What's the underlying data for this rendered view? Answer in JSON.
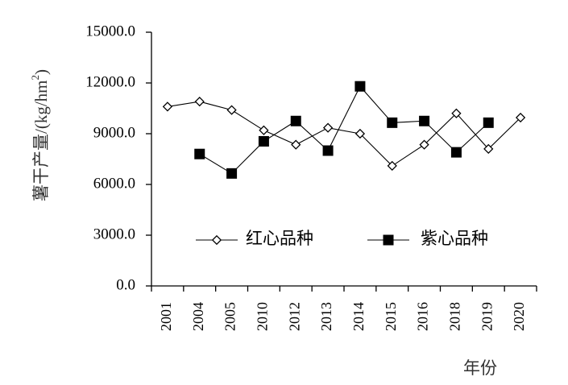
{
  "chart_data": {
    "type": "line",
    "categories": [
      "2001",
      "2004",
      "2005",
      "2010",
      "2012",
      "2013",
      "2014",
      "2015",
      "2016",
      "2018",
      "2019",
      "2020"
    ],
    "series": [
      {
        "name": "红心品种",
        "marker": "open-diamond",
        "color": "#000000",
        "values": [
          10600,
          10900,
          10400,
          9200,
          8350,
          9350,
          9000,
          7100,
          8350,
          10200,
          8100,
          9950
        ]
      },
      {
        "name": "紫心品种",
        "marker": "filled-square",
        "color": "#000000",
        "values": [
          null,
          7800,
          6650,
          8550,
          9750,
          8000,
          11800,
          9650,
          9750,
          7900,
          9650,
          null
        ]
      }
    ],
    "ylim": [
      0,
      15000
    ],
    "yticks": [
      0,
      3000,
      6000,
      9000,
      12000,
      15000
    ],
    "ytick_labels": [
      "0.0",
      "3000.0",
      "6000.0",
      "9000.0",
      "12000.0",
      "15000.0"
    ],
    "ylabel_main": "薯干产量/(kg/hm",
    "ylabel_sup": "2",
    "ylabel_close": ")",
    "xlabel": "年份",
    "legend_position": "inside-bottom-center",
    "grid": false
  }
}
